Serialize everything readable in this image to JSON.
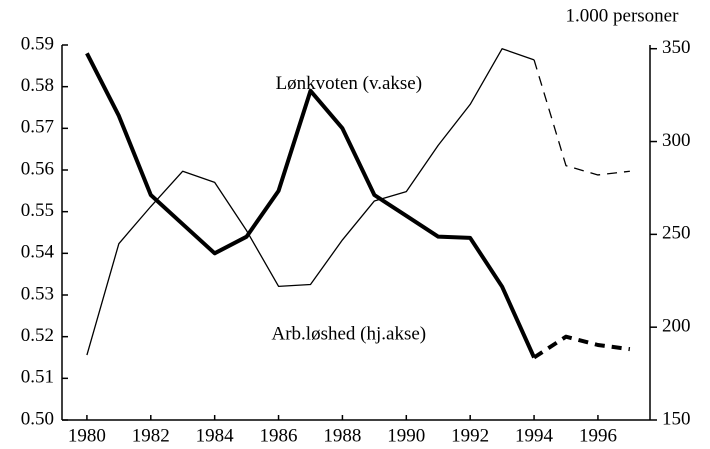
{
  "chart_data": {
    "type": "line",
    "annotations": [
      {
        "text": "Lønkvoten (v.akse)",
        "x": 1988.2,
        "y": 0.5805
      },
      {
        "text": "Arb.løshed (hj.akse)",
        "x": 1988.2,
        "y": 0.5204
      }
    ],
    "y2label": "1.000 personer",
    "x": [
      1980,
      1981,
      1982,
      1983,
      1984,
      1985,
      1986,
      1987,
      1988,
      1989,
      1990,
      1991,
      1992,
      1993,
      1994,
      1995,
      1996,
      1997
    ],
    "dashed_from": 1994,
    "series": [
      {
        "color": "#000000",
        "line_width": 4,
        "values": [
          0.588,
          0.573,
          0.554,
          0.547,
          0.54,
          0.544,
          0.555,
          0.579,
          0.57,
          0.554,
          0.549,
          0.544,
          0.5437,
          0.532,
          0.515,
          0.52,
          0.518,
          0.517
        ]
      },
      {
        "color": "#000000",
        "line_width": 1.3,
        "axis": "y2",
        "values": [
          185,
          245,
          265,
          284,
          278,
          252,
          222,
          223,
          247,
          268,
          273,
          298,
          320,
          350,
          344,
          287,
          282,
          284
        ]
      }
    ],
    "xlim": [
      1979.22,
      1997.63
    ],
    "xticks": [
      1980,
      1982,
      1984,
      1986,
      1988,
      1990,
      1992,
      1994,
      1996
    ],
    "ylim": [
      0.5,
      0.59
    ],
    "yticks": [
      {
        "value": 0.5,
        "label": "0.50"
      },
      0.51,
      0.52,
      0.53,
      0.54,
      0.55,
      0.56,
      0.57,
      0.58,
      0.59
    ],
    "y2lim": [
      150,
      352
    ],
    "y2ticks": [
      150,
      200,
      250,
      300,
      350
    ]
  }
}
